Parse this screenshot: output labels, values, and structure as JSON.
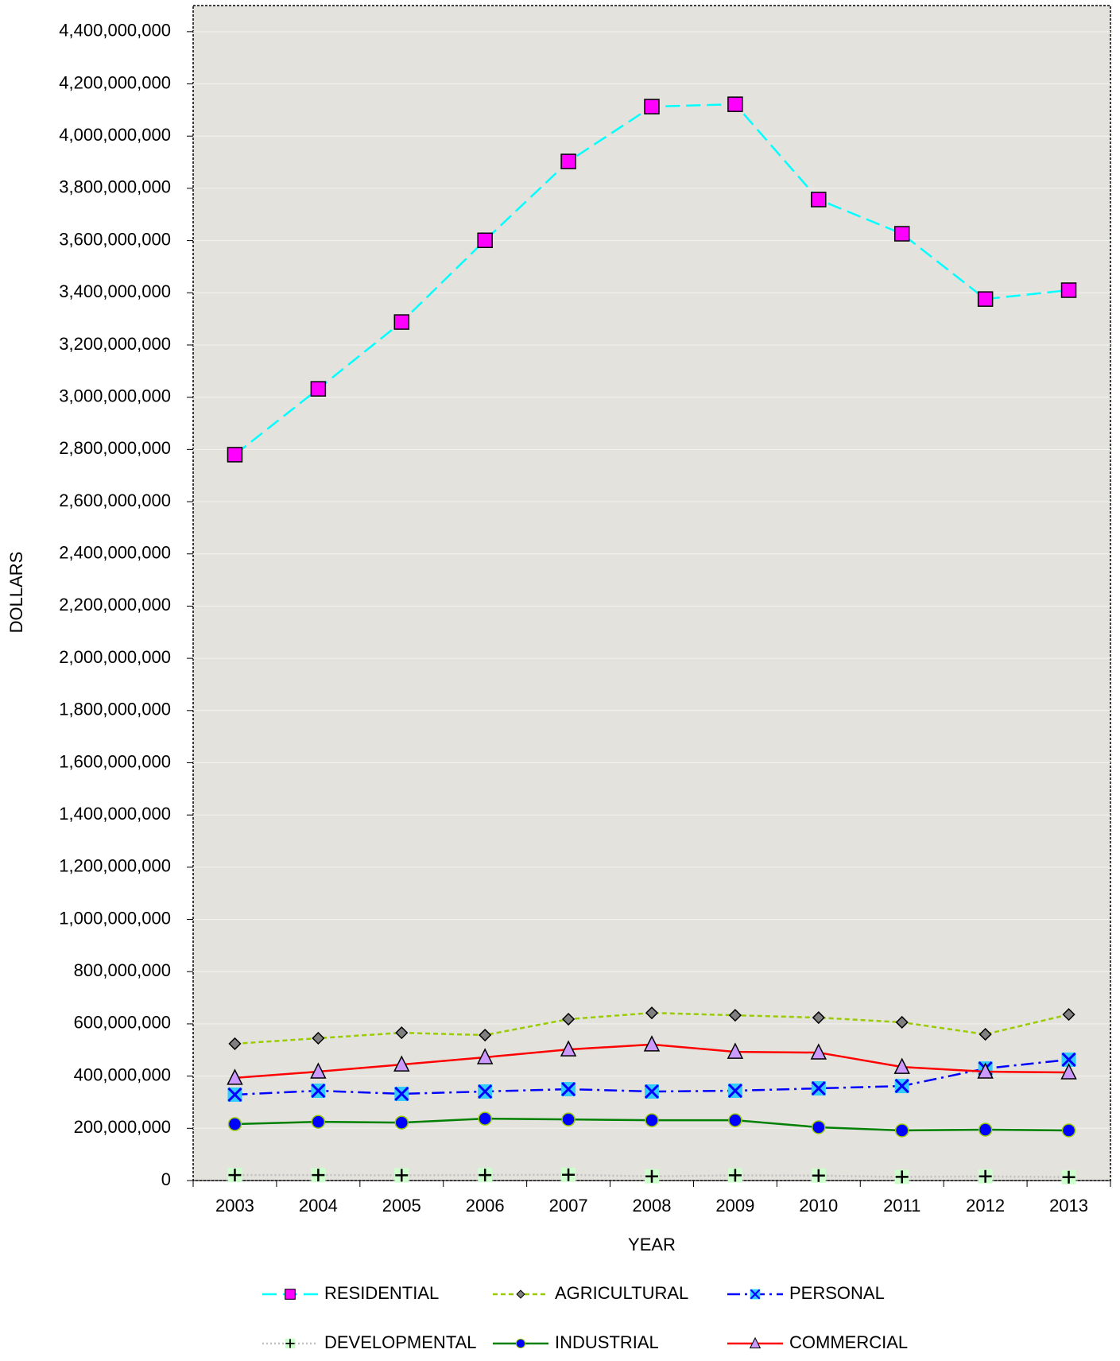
{
  "chart_data": {
    "type": "line",
    "x_label": "YEAR",
    "y_label": "DOLLARS",
    "categories": [
      "2003",
      "2004",
      "2005",
      "2006",
      "2007",
      "2008",
      "2009",
      "2010",
      "2011",
      "2012",
      "2013"
    ],
    "ylim": [
      0,
      4500000000
    ],
    "yticks": [
      0,
      {
        "value": 200000000,
        "label": "200,000,000"
      },
      {
        "value": 400000000,
        "label": "400,000,000"
      },
      {
        "value": 600000000,
        "label": "600,000,000"
      },
      {
        "value": 800000000,
        "label": "800,000,000"
      },
      {
        "value": 1000000000,
        "label": "1,000,000,000"
      },
      {
        "value": 1200000000,
        "label": "1,200,000,000"
      },
      {
        "value": 1400000000,
        "label": "1,400,000,000"
      },
      {
        "value": 1600000000,
        "label": "1,600,000,000"
      },
      {
        "value": 1800000000,
        "label": "1,800,000,000"
      },
      {
        "value": 2000000000,
        "label": "2,000,000,000"
      },
      {
        "value": 2200000000,
        "label": "2,200,000,000"
      },
      {
        "value": 2400000000,
        "label": "2,400,000,000"
      },
      {
        "value": 2600000000,
        "label": "2,600,000,000"
      },
      {
        "value": 2800000000,
        "label": "2,800,000,000"
      },
      {
        "value": 3000000000,
        "label": "3,000,000,000"
      },
      {
        "value": 3200000000,
        "label": "3,200,000,000"
      },
      {
        "value": 3400000000,
        "label": "3,400,000,000"
      },
      {
        "value": 3600000000,
        "label": "3,600,000,000"
      },
      {
        "value": 3800000000,
        "label": "3,800,000,000"
      },
      {
        "value": 4000000000,
        "label": "4,000,000,000"
      },
      {
        "value": 4200000000,
        "label": "4,200,000,000"
      },
      {
        "value": 4400000000,
        "label": "4,400,000,000"
      }
    ],
    "grid": true,
    "series": [
      {
        "name": "RESIDENTIAL",
        "color": "#00ffff",
        "marker": "square",
        "marker_color": "#ff00ff",
        "line_style": "dashed",
        "values": [
          2780000000,
          3032000000,
          3288000000,
          3601000000,
          3903000000,
          4113000000,
          4122000000,
          3757000000,
          3626000000,
          3376000000,
          3410000000
        ]
      },
      {
        "name": "AGRICULTURAL",
        "color": "#99cc00",
        "marker": "diamond",
        "marker_color": "#808080",
        "line_style": "short-dashed",
        "values": [
          524000000,
          545000000,
          566000000,
          557000000,
          618000000,
          642000000,
          633000000,
          624000000,
          606000000,
          560000000,
          636000000
        ]
      },
      {
        "name": "PERSONAL",
        "color": "#0000ff",
        "marker": "x",
        "marker_color": "#33ccff",
        "line_style": "dash-dot",
        "values": [
          329000000,
          344000000,
          332000000,
          341000000,
          350000000,
          341000000,
          344000000,
          353000000,
          362000000,
          429000000,
          463000000
        ]
      },
      {
        "name": "DEVELOPMENTAL",
        "color": "#c0c0c0",
        "marker": "plus",
        "marker_color": "#ccffcc",
        "line_style": "dotted",
        "values": [
          21000000,
          21000000,
          20000000,
          21000000,
          22000000,
          16000000,
          20000000,
          19000000,
          14000000,
          16000000,
          13000000
        ]
      },
      {
        "name": "INDUSTRIAL",
        "color": "#008000",
        "marker": "circle",
        "marker_color": "#0000ff",
        "line_style": "solid",
        "values": [
          216000000,
          225000000,
          222000000,
          237000000,
          234000000,
          231000000,
          231000000,
          204000000,
          192000000,
          195000000,
          192000000
        ]
      },
      {
        "name": "COMMERCIAL",
        "color": "#ff0000",
        "marker": "triangle",
        "marker_color": "#cc99ff",
        "line_style": "solid",
        "values": [
          393000000,
          417000000,
          444000000,
          472000000,
          502000000,
          521000000,
          493000000,
          490000000,
          435000000,
          417000000,
          414000000
        ]
      }
    ]
  }
}
